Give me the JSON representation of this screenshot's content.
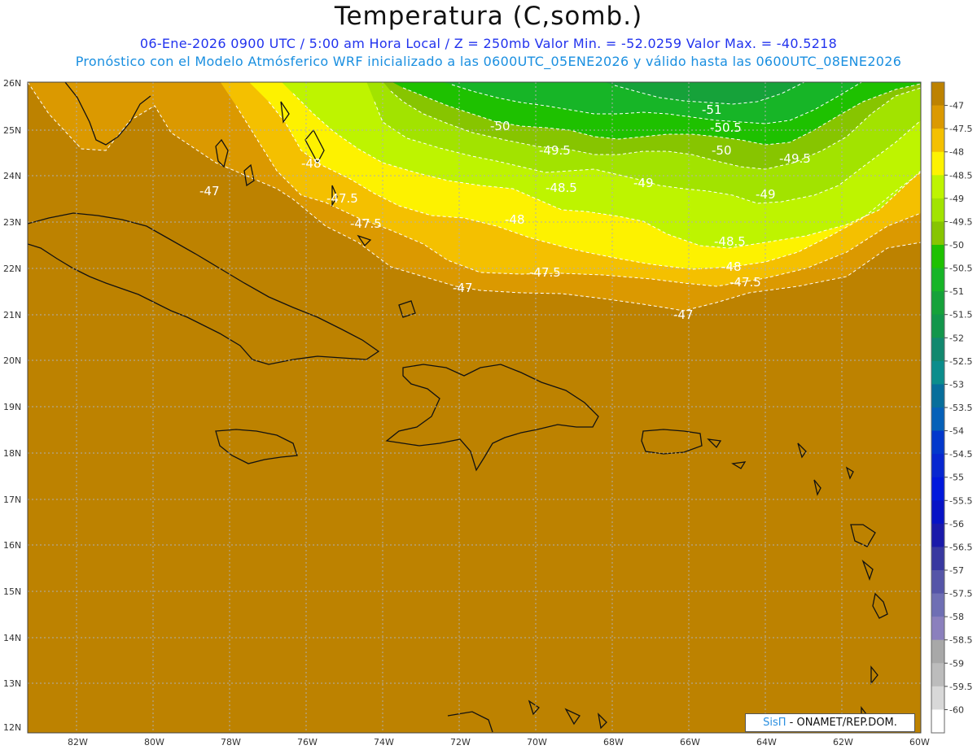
{
  "header": {
    "title": "Temperatura (C,somb.)",
    "line1": "06-Ene-2026  0900 UTC / 5:00 am Hora Local / Z = 250mb  Valor Min. = -52.0259  Valor Max. = -40.5218",
    "line2": "Pronóstico con el Modelo Atmósferico WRF inicializado a las 0600UTC_05ENE2026 y válido hasta las  0600UTC_08ENE2026"
  },
  "map": {
    "lat_labels": [
      "26N",
      "25N",
      "24N",
      "23N",
      "22N",
      "21N",
      "20N",
      "19N",
      "18N",
      "17N",
      "16N",
      "15N",
      "14N",
      "13N",
      "12N"
    ],
    "lon_labels": [
      "82W",
      "80W",
      "78W",
      "76W",
      "74W",
      "72W",
      "70W",
      "68W",
      "66W",
      "64W",
      "62W",
      "60W"
    ],
    "contour_labels": [
      "-51",
      "-50",
      "-50.5",
      "-49.5",
      "-50",
      "-49.5",
      "-48",
      "-48.5",
      "-49",
      "-49",
      "-47",
      "-47.5",
      "-48",
      "-48.5",
      "-47.5",
      "-48",
      "-47.5",
      "-47",
      "-47.5",
      "-47"
    ],
    "colors": {
      "background_field": "#bd8200"
    }
  },
  "colorbar": {
    "labels": [
      "-47",
      "-47.5",
      "-48",
      "-48.5",
      "-49",
      "-49.5",
      "-50",
      "-50.5",
      "-51",
      "-51.5",
      "-52",
      "-52.5",
      "-53",
      "-53.5",
      "-54",
      "-54.5",
      "-55",
      "-55.5",
      "-56",
      "-56.5",
      "-57",
      "-57.5",
      "-58",
      "-58.5",
      "-59",
      "-59.5",
      "-60"
    ],
    "colors": [
      "#bd8200",
      "#db9900",
      "#f4c000",
      "#fdf200",
      "#bef400",
      "#a2e300",
      "#87c500",
      "#1ec100",
      "#17b527",
      "#16a23a",
      "#13964b",
      "#12886e",
      "#0b8d8c",
      "#076e9b",
      "#0560b8",
      "#0338cc",
      "#0727d0",
      "#0018dc",
      "#0713c6",
      "#1a1aaa",
      "#3838a0",
      "#5555a8",
      "#6f6fb4",
      "#8b80bd",
      "#a8a8a8",
      "#bcbcbc",
      "#d8d8d8",
      "#ffffff"
    ]
  },
  "footer": {
    "logo": "SisΠ",
    "credit": " - ONAMET/REP.DOM."
  }
}
